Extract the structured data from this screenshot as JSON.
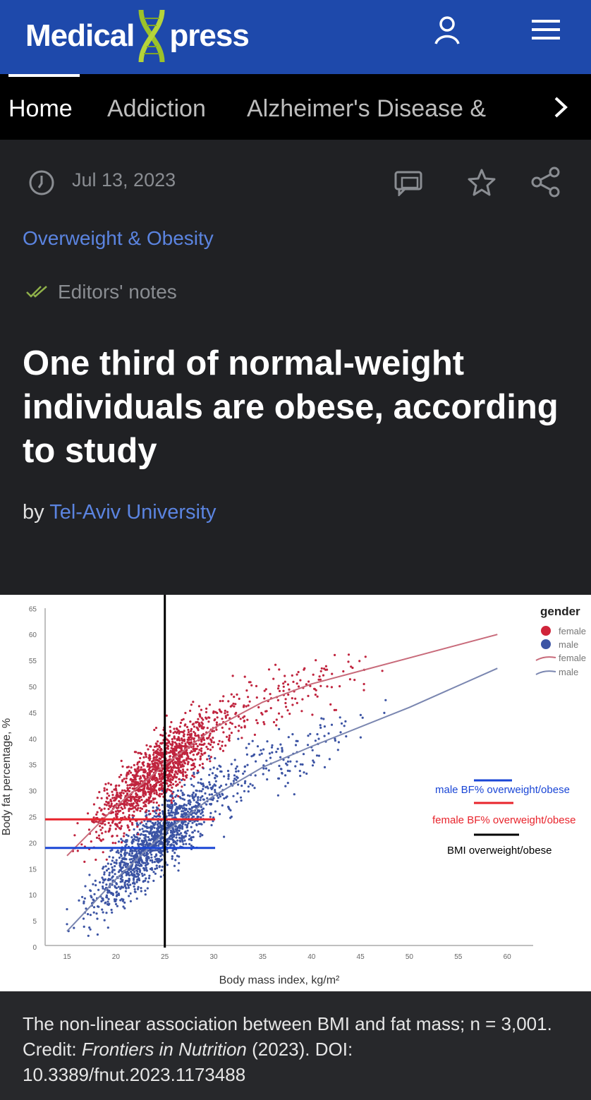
{
  "header": {
    "logo_left": "Medical",
    "logo_right": "press",
    "logo_full": "MedicalXpress"
  },
  "nav": {
    "items": [
      {
        "label": "Home"
      },
      {
        "label": "Addiction"
      },
      {
        "label": "Alzheimer's Disease &"
      }
    ]
  },
  "article": {
    "date": "Jul 13, 2023",
    "category": "Overweight & Obesity",
    "editors_notes": "Editors' notes",
    "title": "One third of normal-weight individuals are obese, according to study",
    "by_prefix": "by",
    "author": "Tel-Aviv University",
    "caption_prefix": "The non-linear association between BMI and fat mass; n = 3,001. Credit: ",
    "caption_journal": "Frontiers in Nutrition",
    "caption_suffix": " (2023). DOI: 10.3389/fnut.2023.1173488"
  },
  "colors": {
    "header": "#1e49ab",
    "female": "#c0243e",
    "male": "#3c54a4",
    "female_fit": "#c86a7a",
    "male_fit": "#7a86b0",
    "ref_female": "#e8242c",
    "ref_male": "#1a46d6",
    "ref_bmi": "#000000"
  },
  "chart_data": {
    "type": "scatter",
    "xlabel": "Body mass index, kg/m²",
    "ylabel": "Body fat percentage, %",
    "xlim": [
      12.8,
      63
    ],
    "ylim": [
      0,
      65
    ],
    "xticks": [
      15,
      20,
      25,
      30,
      35,
      40,
      45,
      50,
      55,
      60
    ],
    "yticks": [
      0,
      5,
      10,
      15,
      20,
      25,
      30,
      35,
      40,
      45,
      50,
      55,
      60,
      65
    ],
    "n": 3001,
    "legend": {
      "title": "gender",
      "entries": [
        "female",
        "male",
        "female",
        "male"
      ],
      "position": "top-right"
    },
    "series": [
      {
        "name": "female",
        "fit": {
          "x": [
            15,
            20,
            25,
            30,
            35,
            40,
            50,
            59
          ],
          "y": [
            17.5,
            27,
            35,
            42,
            47,
            50.5,
            55.5,
            60
          ]
        }
      },
      {
        "name": "male",
        "fit": {
          "x": [
            15,
            20,
            25,
            30,
            35,
            40,
            50,
            59
          ],
          "y": [
            3,
            13,
            22,
            29,
            34.5,
            38.5,
            46,
            53.5
          ]
        }
      }
    ],
    "reference_lines": [
      {
        "label": "male BF% overweight/obese",
        "axis": "y",
        "value": 19,
        "x_end": 30
      },
      {
        "label": "female BF% overweight/obese",
        "axis": "y",
        "value": 24.5,
        "x_end": 30
      },
      {
        "label": "BMI overweight/obese",
        "axis": "x",
        "value": 25
      }
    ]
  }
}
